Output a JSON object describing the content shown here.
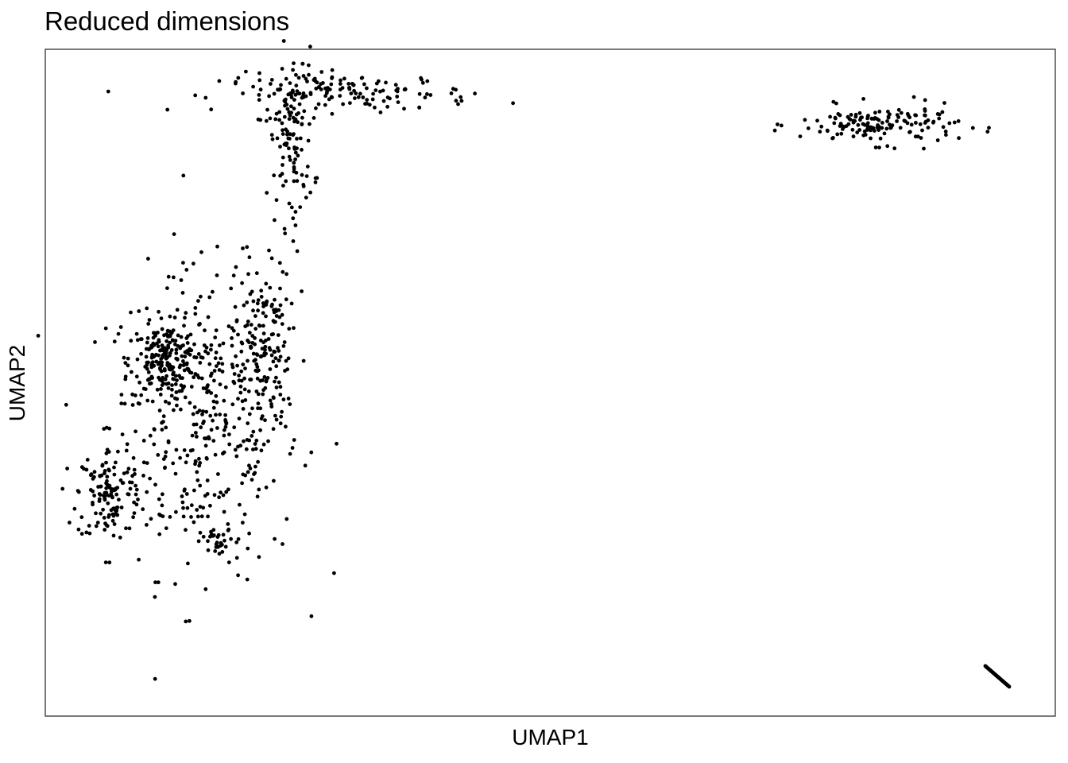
{
  "chart_data": {
    "type": "scatter",
    "title": "Reduced dimensions",
    "xlabel": "UMAP1",
    "ylabel": "UMAP2",
    "xlim": [
      0,
      1271
    ],
    "ylim": [
      -839,
      0
    ],
    "grid": false,
    "legend": "none",
    "point_color": "#000000",
    "clusters": [
      {
        "cx": 200,
        "cy": -470,
        "sx": 60,
        "sy": 95,
        "n": 420
      },
      {
        "cx": 150,
        "cy": -390,
        "sx": 22,
        "sy": 22,
        "n": 180
      },
      {
        "cx": 80,
        "cy": -560,
        "sx": 20,
        "sy": 30,
        "n": 120
      },
      {
        "cx": 270,
        "cy": -370,
        "sx": 18,
        "sy": 50,
        "n": 140
      },
      {
        "cx": 220,
        "cy": -620,
        "sx": 12,
        "sy": 8,
        "n": 25
      },
      {
        "cx": 310,
        "cy": -110,
        "sx": 14,
        "sy": 55,
        "n": 120
      },
      {
        "cx": 380,
        "cy": -55,
        "sx": 80,
        "sy": 12,
        "n": 150
      },
      {
        "cx": 1050,
        "cy": -95,
        "sx": 50,
        "sy": 12,
        "n": 150
      }
    ],
    "lines": [
      {
        "x1": 1183,
        "y1": -776,
        "x2": 1213,
        "y2": -802,
        "n": 40
      }
    ]
  }
}
